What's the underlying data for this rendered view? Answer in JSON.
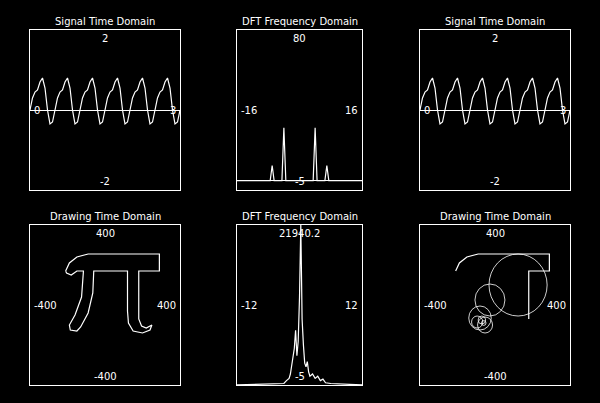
{
  "chart_data": [
    {
      "type": "line",
      "title": "Signal Time Domain",
      "color": "#ffffff",
      "grid": false,
      "x": [
        0,
        0.05,
        0.1,
        0.15,
        0.2,
        0.25,
        0.3,
        0.35,
        0.4,
        0.45,
        0.5,
        0.55,
        0.6,
        0.65,
        0.7,
        0.75,
        0.8,
        0.85,
        0.9,
        0.95,
        1,
        1.05,
        1.1,
        1.15,
        1.2,
        1.25,
        1.3,
        1.35,
        1.4,
        1.45,
        1.5,
        1.55,
        1.6,
        1.65,
        1.7,
        1.75,
        1.8,
        1.85,
        1.9,
        1.95,
        2,
        2.05,
        2.1,
        2.15,
        2.2,
        2.25,
        2.3,
        2.35,
        2.4,
        2.45,
        2.5,
        2.55,
        2.6,
        2.65,
        2.7,
        2.75,
        2.8,
        2.85,
        2.9,
        2.95,
        3
      ],
      "values": [
        0.0,
        0.3,
        0.45,
        0.5,
        0.7,
        0.8,
        0.55,
        0.0,
        -0.35,
        -0.3,
        0.0,
        0.3,
        0.45,
        0.5,
        0.7,
        0.8,
        0.55,
        0.0,
        -0.35,
        -0.3,
        0.0,
        0.3,
        0.45,
        0.5,
        0.7,
        0.8,
        0.55,
        0.0,
        -0.35,
        -0.3,
        0.0,
        0.3,
        0.45,
        0.5,
        0.7,
        0.8,
        0.55,
        0.0,
        -0.35,
        -0.3,
        0.0,
        0.3,
        0.45,
        0.5,
        0.7,
        0.8,
        0.55,
        0.0,
        -0.35,
        -0.3,
        0.0,
        0.3,
        0.45,
        0.5,
        0.7,
        0.8,
        0.55,
        0.0,
        -0.35,
        -0.3,
        0.0
      ],
      "xlim": [
        0,
        3
      ],
      "ylim": [
        -2,
        2
      ],
      "xticks": [
        0,
        3
      ],
      "yticks": [
        -2,
        2
      ]
    },
    {
      "type": "line",
      "title": "DFT Frequency Domain",
      "color": "#ffffff",
      "grid": false,
      "x": [
        -16,
        -7.5,
        -7,
        -6.5,
        -4.5,
        -4,
        -3.5,
        3.5,
        4,
        4.5,
        6.5,
        7,
        7.5,
        16
      ],
      "values": [
        0,
        0,
        8,
        0,
        0,
        28,
        0,
        0,
        28,
        0,
        0,
        8,
        0,
        0
      ],
      "xlim": [
        -16,
        16
      ],
      "ylim": [
        -5,
        80
      ],
      "xticks": [
        -16,
        16
      ],
      "yticks": [
        -5,
        80
      ]
    },
    {
      "type": "line",
      "title": "Signal Time Domain",
      "color": "#ffffff",
      "grid": false,
      "x": [
        0,
        0.05,
        0.1,
        0.15,
        0.2,
        0.25,
        0.3,
        0.35,
        0.4,
        0.45,
        0.5,
        0.55,
        0.6,
        0.65,
        0.7,
        0.75,
        0.8,
        0.85,
        0.9,
        0.95,
        1,
        1.05,
        1.1,
        1.15,
        1.2,
        1.25,
        1.3,
        1.35,
        1.4,
        1.45,
        1.5,
        1.55,
        1.6,
        1.65,
        1.7,
        1.75,
        1.8,
        1.85,
        1.9,
        1.95,
        2,
        2.05,
        2.1,
        2.15,
        2.2,
        2.25,
        2.3,
        2.35,
        2.4,
        2.45,
        2.5,
        2.55,
        2.6,
        2.65,
        2.7,
        2.75,
        2.8,
        2.85,
        2.9,
        2.95,
        3
      ],
      "values": [
        0.0,
        0.3,
        0.45,
        0.5,
        0.7,
        0.8,
        0.55,
        0.0,
        -0.35,
        -0.3,
        0.0,
        0.3,
        0.45,
        0.5,
        0.7,
        0.8,
        0.55,
        0.0,
        -0.35,
        -0.3,
        0.0,
        0.3,
        0.45,
        0.5,
        0.7,
        0.8,
        0.55,
        0.0,
        -0.35,
        -0.3,
        0.0,
        0.3,
        0.45,
        0.5,
        0.7,
        0.8,
        0.55,
        0.0,
        -0.35,
        -0.3,
        0.0,
        0.3,
        0.45,
        0.5,
        0.7,
        0.8,
        0.55,
        0.0,
        -0.35,
        -0.3,
        0.0,
        0.3,
        0.45,
        0.5,
        0.7,
        0.8,
        0.55,
        0.0,
        -0.35,
        -0.3,
        0.0
      ],
      "xlim": [
        0,
        3
      ],
      "ylim": [
        -2,
        2
      ],
      "xticks": [
        0,
        3
      ],
      "yticks": [
        -2,
        2
      ]
    },
    {
      "type": "path",
      "title": "Drawing Time Domain",
      "color": "#ffffff",
      "grid": false,
      "x": [
        -210,
        -190,
        -150,
        -90,
        290,
        290,
        180,
        180,
        195,
        220,
        250,
        240,
        200,
        150,
        125,
        120,
        120,
        -60,
        -65,
        -90,
        -130,
        -150,
        -185,
        -190,
        -160,
        -125,
        -115,
        -150,
        -180,
        -205,
        -210
      ],
      "values": [
        170,
        210,
        240,
        255,
        255,
        170,
        170,
        -70,
        -105,
        -115,
        -100,
        -125,
        -140,
        -130,
        -90,
        -30,
        170,
        170,
        60,
        -40,
        -110,
        -130,
        -125,
        -100,
        -50,
        40,
        170,
        170,
        150,
        160,
        170
      ],
      "xlim": [
        -400,
        400
      ],
      "ylim": [
        -400,
        400
      ],
      "xticks": [
        -400,
        400
      ],
      "yticks": [
        -400,
        400
      ]
    },
    {
      "type": "line",
      "title": "DFT Frequency Domain",
      "color": "#ffffff",
      "grid": false,
      "x": [
        -12,
        -3,
        -2.5,
        -2,
        -1.75,
        -1.5,
        -1.25,
        -1,
        -0.75,
        -0.5,
        -0.25,
        0,
        0.25,
        0.5,
        0.75,
        1,
        1.25,
        1.5,
        1.75,
        2,
        2.5,
        3,
        3.5,
        4,
        4.5,
        5,
        6,
        12
      ],
      "values": [
        0,
        200,
        600,
        900,
        1500,
        2500,
        3500,
        5000,
        7500,
        4000,
        6000,
        12000,
        21940.2,
        9000,
        5500,
        3000,
        2500,
        3200,
        1800,
        1200,
        1500,
        900,
        1200,
        600,
        800,
        300,
        200,
        0
      ],
      "xlim": [
        -12,
        12
      ],
      "ylim": [
        -5,
        21940.2
      ],
      "xticks": [
        -12,
        12
      ],
      "yticks": [
        -5,
        21940.2
      ]
    },
    {
      "type": "path",
      "title": "Drawing Time Domain",
      "color": "#ffffff",
      "grid": false,
      "x": [
        -210,
        -190,
        -150,
        -90,
        290,
        290,
        180,
        180,
        180
      ],
      "values": [
        170,
        210,
        240,
        255,
        255,
        170,
        170,
        0,
        -70
      ],
      "circles": [
        {
          "x": 123,
          "y": 100,
          "r": 155
        },
        {
          "x": -27,
          "y": 25,
          "r": 80
        },
        {
          "x": -80,
          "y": -65,
          "r": 60
        },
        {
          "x": -53,
          "y": -100,
          "r": 40
        },
        {
          "x": -95,
          "y": -85,
          "r": 30
        },
        {
          "x": -70,
          "y": -75,
          "r": 20
        },
        {
          "x": -60,
          "y": -90,
          "r": 12
        }
      ],
      "xlim": [
        -400,
        400
      ],
      "ylim": [
        -400,
        400
      ],
      "xticks": [
        -400,
        400
      ],
      "yticks": [
        -400,
        400
      ]
    }
  ]
}
